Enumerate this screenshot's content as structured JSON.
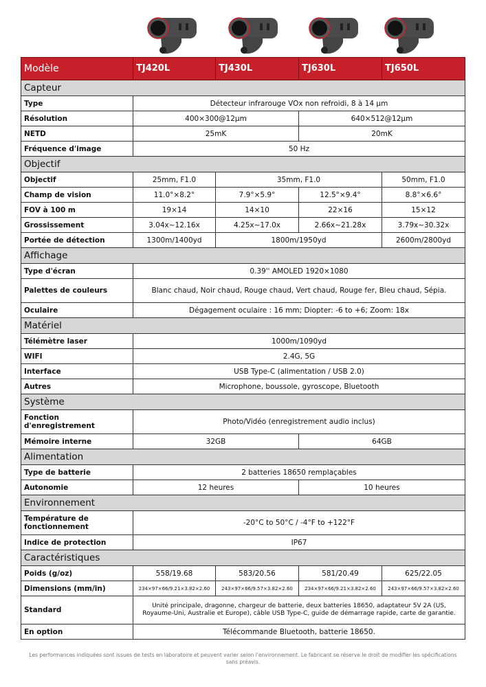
{
  "header": {
    "label": "Modèle",
    "models": [
      "TJ420L",
      "TJ430L",
      "TJ630L",
      "TJ650L"
    ]
  },
  "colors": {
    "header_bg": "#c8202a",
    "section_bg": "#d7d7d7"
  },
  "sections": [
    {
      "title": "Capteur",
      "rows": [
        {
          "label": "Type",
          "cells": [
            {
              "t": "Détecteur infrarouge VOx non refroidi, 8 à 14 µm",
              "s": 4
            }
          ]
        },
        {
          "label": "Résolution",
          "cells": [
            {
              "t": "400×300@12µm",
              "s": 2
            },
            {
              "t": "640×512@12µm",
              "s": 2
            }
          ]
        },
        {
          "label": "NETD",
          "cells": [
            {
              "t": "25mK",
              "s": 2
            },
            {
              "t": "20mK",
              "s": 2
            }
          ]
        },
        {
          "label": "Fréquence d'image",
          "cells": [
            {
              "t": "50 Hz",
              "s": 4
            }
          ]
        }
      ]
    },
    {
      "title": "Objectif",
      "rows": [
        {
          "label": "Objectif",
          "cells": [
            {
              "t": "25mm, F1.0",
              "s": 1
            },
            {
              "t": "35mm, F1.0",
              "s": 2
            },
            {
              "t": "50mm, F1.0",
              "s": 1
            }
          ]
        },
        {
          "label": "Champ de vision",
          "cells": [
            {
              "t": "11.0°×8.2°",
              "s": 1
            },
            {
              "t": "7.9°×5.9°",
              "s": 1
            },
            {
              "t": "12.5°×9.4°",
              "s": 1
            },
            {
              "t": "8.8°×6.6°",
              "s": 1
            }
          ]
        },
        {
          "label": "FOV à 100 m",
          "cells": [
            {
              "t": "19×14",
              "s": 1
            },
            {
              "t": "14×10",
              "s": 1
            },
            {
              "t": "22×16",
              "s": 1
            },
            {
              "t": "15×12",
              "s": 1
            }
          ]
        },
        {
          "label": "Grossissement",
          "cells": [
            {
              "t": "3.04x~12.16x",
              "s": 1
            },
            {
              "t": "4.25x~17.0x",
              "s": 1
            },
            {
              "t": "2.66x~21.28x",
              "s": 1
            },
            {
              "t": "3.79x~30.32x",
              "s": 1
            }
          ]
        },
        {
          "label": "Portée de détection",
          "cells": [
            {
              "t": "1300m/1400yd",
              "s": 1
            },
            {
              "t": "1800m/1950yd",
              "s": 2
            },
            {
              "t": "2600m/2800yd",
              "s": 1
            }
          ]
        }
      ]
    },
    {
      "title": "Affichage",
      "rows": [
        {
          "label": "Type d'écran",
          "cells": [
            {
              "t": "0.39'' AMOLED 1920×1080",
              "s": 4
            }
          ]
        },
        {
          "label": "Palettes de couleurs",
          "tall": true,
          "cells": [
            {
              "t": "Blanc chaud, Noir chaud, Rouge chaud, Vert chaud, Rouge fer, Bleu chaud, Sépia.",
              "s": 4
            }
          ]
        },
        {
          "label": "Oculaire",
          "cells": [
            {
              "t": "Dégagement oculaire : 16 mm; Diopter: -6 to +6; Zoom: 18x",
              "s": 4
            }
          ]
        }
      ]
    },
    {
      "title": "Matériel",
      "rows": [
        {
          "label": "Télémètre laser",
          "cells": [
            {
              "t": "1000m/1090yd",
              "s": 4
            }
          ]
        },
        {
          "label": "WIFI",
          "cells": [
            {
              "t": "2.4G, 5G",
              "s": 4
            }
          ]
        },
        {
          "label": "Interface",
          "cells": [
            {
              "t": "USB Type-C (alimentation / USB 2.0)",
              "s": 4
            }
          ]
        },
        {
          "label": "Autres",
          "cells": [
            {
              "t": "Microphone, boussole, gyroscope, Bluetooth",
              "s": 4
            }
          ]
        }
      ]
    },
    {
      "title": "Système",
      "rows": [
        {
          "label": "Fonction d'enregistrement",
          "tall": true,
          "cells": [
            {
              "t": "Photo/Vidéo (enregistrement audio inclus)",
              "s": 4
            }
          ]
        },
        {
          "label": "Mémoire interne",
          "cells": [
            {
              "t": "32GB",
              "s": 2
            },
            {
              "t": "64GB",
              "s": 2
            }
          ]
        }
      ]
    },
    {
      "title": "Alimentation",
      "rows": [
        {
          "label": "Type de batterie",
          "cells": [
            {
              "t": "2 batteries 18650 remplaçables",
              "s": 4
            }
          ]
        },
        {
          "label": "Autonomie",
          "cells": [
            {
              "t": "12 heures",
              "s": 2
            },
            {
              "t": "10 heures",
              "s": 2
            }
          ]
        }
      ]
    },
    {
      "title": "Environnement",
      "rows": [
        {
          "label": "Température de fonctionnement",
          "tall": true,
          "cells": [
            {
              "t": "-20°C to 50°C / -4°F to +122°F",
              "s": 4
            }
          ]
        },
        {
          "label": "Indice de protection",
          "cells": [
            {
              "t": "IP67",
              "s": 4
            }
          ]
        }
      ]
    },
    {
      "title": "Caractéristiques",
      "rows": [
        {
          "label": "Poids  (g/oz)",
          "cells": [
            {
              "t": "558/19.68",
              "s": 1
            },
            {
              "t": "583/20.56",
              "s": 1
            },
            {
              "t": "581/20.49",
              "s": 1
            },
            {
              "t": "625/22.05",
              "s": 1
            }
          ]
        },
        {
          "label": "Dimensions (mm/in)",
          "small": true,
          "cells": [
            {
              "t": "234×97×66/9.21×3.82×2.60",
              "s": 1
            },
            {
              "t": "243×97×66/9.57×3.82×2.60",
              "s": 1
            },
            {
              "t": "234×97×66/9.21×3.82×2.60",
              "s": 1
            },
            {
              "t": "243×97×66/9.57×3.82×2.60",
              "s": 1
            }
          ]
        },
        {
          "label": "Standard",
          "tall2": true,
          "std": true,
          "cells": [
            {
              "t": "Unité principale, dragonne, chargeur de batterie, deux batteries 18650, adaptateur 5V 2A (US, Royaume-Uni, Australie et Europe), câble USB Type-C, guide de démarrage rapide, carte de garantie.",
              "s": 4
            }
          ]
        },
        {
          "label": "En option",
          "cells": [
            {
              "t": "Télécommande Bluetooth, batterie 18650.",
              "s": 4
            }
          ]
        }
      ]
    }
  ],
  "footer": "Les performances indiquées sont issues de tests en laboratoire et peuvent varier selon l'environnement. Le fabricant se réserve le droit de modifier les spécifications sans préavis."
}
